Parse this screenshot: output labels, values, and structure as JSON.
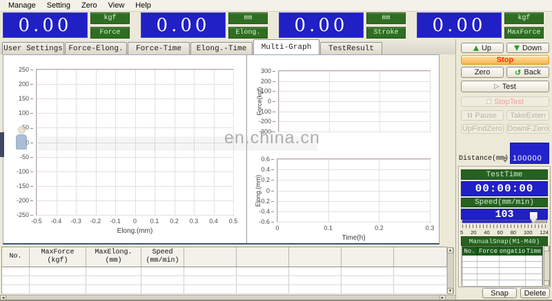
{
  "colors": {
    "lcd_blue": "#2120c4",
    "label_green": "#2f6e22",
    "snap_green": "#1d5c1d",
    "stop_face": "#f6b44e",
    "stop_text": "#ff2f00",
    "chrome": "#ece9d8"
  },
  "menu": {
    "items": [
      "Manage",
      "Setting",
      "Zero",
      "View",
      "Help"
    ]
  },
  "readouts": [
    {
      "value": "0.00",
      "unit": "kgf",
      "label": "Force"
    },
    {
      "value": "0.00",
      "unit": "mm",
      "label": "Elong."
    },
    {
      "value": "0.00",
      "unit": "mm",
      "label": "Stroke"
    },
    {
      "value": "0.00",
      "unit": "kgf",
      "label": "MaxForce"
    }
  ],
  "tabs": [
    {
      "label": "User Settings",
      "active": false
    },
    {
      "label": "Force-Elong.",
      "active": false
    },
    {
      "label": "Force-Time",
      "active": false
    },
    {
      "label": "Elong.-Time",
      "active": false
    },
    {
      "label": "Multi-Graph",
      "active": true
    },
    {
      "label": "TestResult",
      "active": false
    }
  ],
  "watermark": {
    "text": "en.china.cn"
  },
  "chart_data": [
    {
      "name": "force_elong",
      "type": "line",
      "title": "",
      "xlabel": "Elong.(mm)",
      "ylabel": "",
      "xlim": [
        -0.5,
        0.5
      ],
      "ylim": [
        -250,
        250
      ],
      "grid": true,
      "xticks": [
        "-0.5",
        "-0.4",
        "-0.3",
        "-0.2",
        "-0.1",
        "0",
        "0.1",
        "0.2",
        "0.3",
        "0.4",
        "0.5"
      ],
      "yticks": [
        "250",
        "200",
        "150",
        "100",
        "50",
        "0",
        "-50",
        "-100",
        "-150",
        "-200",
        "-250"
      ],
      "show_xlabels": true,
      "series": []
    },
    {
      "name": "force_time",
      "type": "line",
      "title": "",
      "xlabel": "",
      "ylabel": "Force(kgf)",
      "xlim": [
        0,
        0.3
      ],
      "ylim": [
        -300,
        300
      ],
      "grid": true,
      "xticks": [
        "0",
        "0.1",
        "0.2",
        "0.3"
      ],
      "yticks": [
        "300",
        "200",
        "100",
        "0",
        "-100",
        "-200",
        "-300"
      ],
      "show_xlabels": false,
      "series": []
    },
    {
      "name": "elong_time",
      "type": "line",
      "title": "",
      "xlabel": "Time(h)",
      "ylabel": "Elong.(mm)",
      "xlim": [
        0,
        0.3
      ],
      "ylim": [
        -0.6,
        0.6
      ],
      "grid": true,
      "xticks": [
        "0",
        "0.1",
        "0.2",
        "0.3"
      ],
      "yticks": [
        "0.6",
        "0.4",
        "0.2",
        "0",
        "-0.2",
        "-0.4",
        "-0.6"
      ],
      "show_xlabels": true,
      "series": []
    }
  ],
  "results_table": {
    "columns": [
      [
        "No.",
        ""
      ],
      [
        "MaxForce",
        "(kgf)"
      ],
      [
        "MaxElong.",
        "(mm)"
      ],
      [
        "Speed",
        "(mm/min)"
      ],
      [
        "",
        ""
      ],
      [
        "",
        ""
      ],
      [
        "",
        ""
      ],
      [
        "",
        ""
      ],
      [
        "",
        ""
      ]
    ],
    "empty_rows": 3
  },
  "sidebar": {
    "up": "Up",
    "down": "Down",
    "stop": "Stop",
    "zero": "Zero",
    "back": "Back",
    "test": "Test",
    "stop_test": "StopTest",
    "pause": "Pause",
    "take_exten": "TakeExten",
    "up_find_zero": "UpFindZero",
    "down_f_zero": "DownF.Zero",
    "distance": {
      "label": "Distance(mm)",
      "value": "100000"
    },
    "test_time": {
      "label": "TestTime",
      "value": "00:00:00"
    },
    "speed": {
      "label": "Speed(mm/min)",
      "value": "103"
    },
    "scale_labels": [
      "5",
      "20",
      "40",
      "60",
      "80",
      "100",
      "124"
    ],
    "manual_snap": {
      "title": "ManualSnap(M1-M40)",
      "columns": [
        "No.",
        "Force",
        "ongatio",
        "Time"
      ],
      "empty_rows": 5
    },
    "snap": "Snap",
    "delete": "Delete"
  }
}
